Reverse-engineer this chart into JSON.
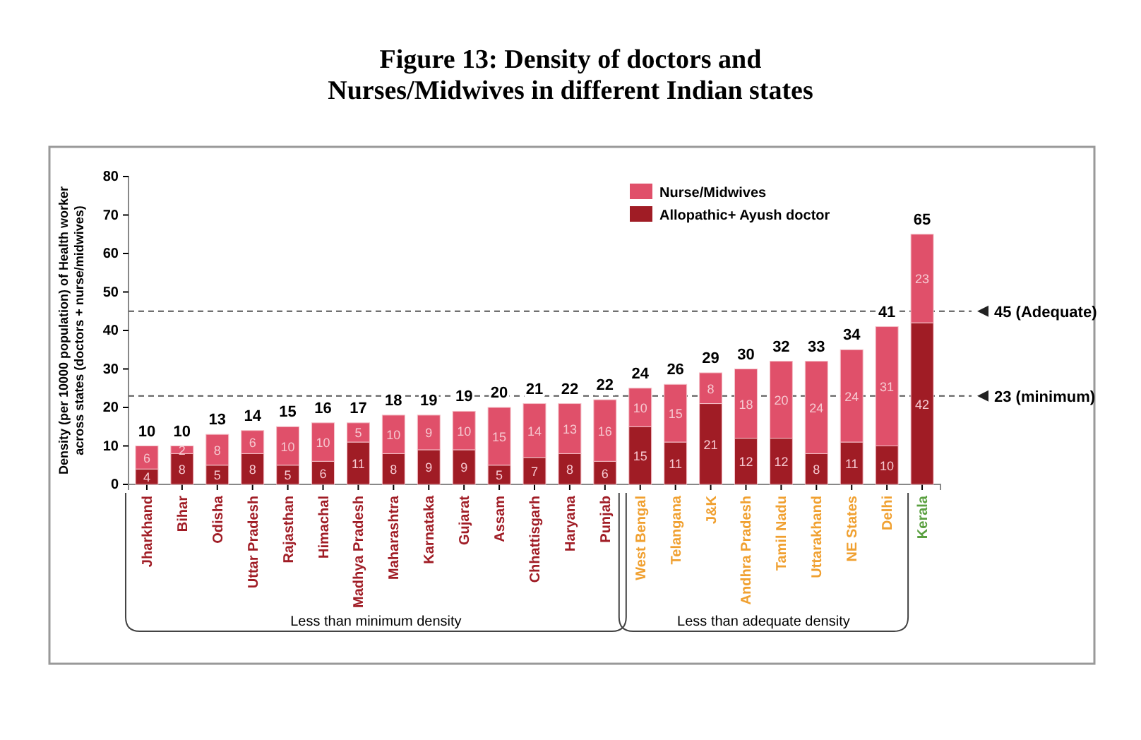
{
  "chart_data": {
    "type": "bar",
    "title": "Figure 13: Density of doctors and Nurses/Midwives in different Indian states",
    "ylabel": "Density (per 10000 population) of Health worker across states (doctors + nurse/midwives)",
    "categories": [
      "Jharkhand",
      "Bihar",
      "Odisha",
      "Uttar Pradesh",
      "Rajasthan",
      "Himachal",
      "Madhya Pradesh",
      "Maharashtra",
      "Karnataka",
      "Gujarat",
      "Assam",
      "Chhattisgarh",
      "Haryana",
      "Punjab",
      "West Bengal",
      "Telangana",
      "J&K",
      "Andhra Pradesh",
      "Tamil Nadu",
      "Uttarakhand",
      "NE States",
      "Delhi",
      "Kerala"
    ],
    "stacked": true,
    "series": [
      {
        "name": "Allopathic+ Ayush doctor",
        "color": "#a01c25",
        "values": [
          4,
          8,
          5,
          8,
          5,
          6,
          11,
          8,
          9,
          9,
          5,
          7,
          8,
          6,
          15,
          11,
          21,
          12,
          12,
          8,
          11,
          10,
          42
        ]
      },
      {
        "name": "Nurse/Midwives",
        "color": "#e0506a",
        "values": [
          6,
          2,
          8,
          6,
          10,
          10,
          5,
          10,
          9,
          10,
          15,
          14,
          13,
          16,
          10,
          15,
          8,
          18,
          20,
          24,
          24,
          31,
          23
        ]
      }
    ],
    "totals": [
      "10",
      "10",
      "13",
      "14",
      "15",
      "16",
      "17",
      "18",
      "19",
      "19",
      "20",
      "21",
      "22",
      "22",
      "24",
      "26",
      "29",
      "30",
      "32",
      "33",
      "34",
      "41",
      "65"
    ],
    "data_labels": true,
    "ylim": [
      0,
      80
    ],
    "yticks": [
      0,
      10,
      20,
      30,
      40,
      50,
      60,
      70,
      80
    ],
    "ref_lines": [
      {
        "axis": "y",
        "value": 45,
        "label": "45 (Adequate)",
        "line_style": "dashed"
      },
      {
        "axis": "y",
        "value": 23,
        "label": "23 (minimum)",
        "line_style": "dashed"
      }
    ],
    "annotations": [
      "Less than minimum density",
      "Less than adequate density"
    ],
    "legend": "top right"
  }
}
